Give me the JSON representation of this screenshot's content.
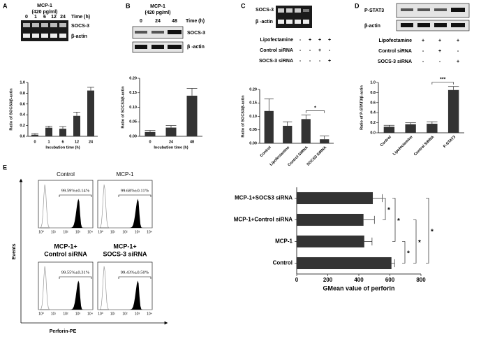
{
  "panel_labels": [
    "A",
    "B",
    "C",
    "D",
    "E"
  ],
  "blots": {
    "A": {
      "title": "MCP-1",
      "subtitle": "(420 pg/ml)",
      "lanes": [
        "0",
        "1",
        "6",
        "12",
        "24"
      ],
      "time_label": "Time (h)",
      "rows": [
        "SOCS-3",
        "β-actin"
      ]
    },
    "B": {
      "title": "MCP-1",
      "subtitle": "(420 pg/ml)",
      "lanes": [
        "0",
        "24",
        "48"
      ],
      "time_label": "Time (h)",
      "rows": [
        "SOCS-3",
        "β -actin"
      ]
    },
    "C": {
      "rows": [
        "SOCS-3",
        "β -actin"
      ],
      "treatments": [
        "Lipofectamine",
        "Control siRNA",
        "SOCS-3 siRNA"
      ],
      "signs": [
        [
          "-",
          "+",
          "+",
          "+"
        ],
        [
          "-",
          "-",
          "+",
          "-"
        ],
        [
          "-",
          "-",
          "-",
          "+"
        ]
      ]
    },
    "D": {
      "rows": [
        "P-STAT3",
        "β-actin"
      ],
      "treatments": [
        "Lipofectamine",
        "Control siRNA",
        "SOCS-3 siRNA"
      ],
      "signs": [
        [
          "-",
          "+",
          "+",
          "+"
        ],
        [
          "-",
          "-",
          "+",
          "-"
        ],
        [
          "-",
          "-",
          "-",
          "+"
        ]
      ]
    }
  },
  "flow": {
    "panels": [
      {
        "title": "Control",
        "stat": "99.59%±0.14%"
      },
      {
        "title": "MCP-1",
        "stat": "99.68%±0.11%"
      },
      {
        "title": "MCP-1+",
        "subtitle": "Control siRNA",
        "stat": "99.55%±0.31%"
      },
      {
        "title": "MCP-1+",
        "subtitle": "SOCS-3 siRNA",
        "stat": "99.43%±0.50%"
      }
    ],
    "xticks": [
      "10⁰",
      "10¹",
      "10²",
      "10³",
      "10⁴"
    ],
    "xlabel": "Perforin-PE",
    "ylabel": "Events"
  },
  "chart_data": [
    {
      "type": "bar",
      "categories": [
        "0",
        "1",
        "6",
        "12",
        "24"
      ],
      "values": [
        0.03,
        0.16,
        0.14,
        0.38,
        0.85
      ],
      "errors": [
        0.02,
        0.03,
        0.04,
        0.07,
        0.06
      ],
      "xlabel": "Incubation time (h)",
      "ylabel": "Ratio of SOCS3/β-actin",
      "color": "#333333",
      "ylim": [
        0,
        1.0
      ],
      "yticks": [
        {
          "value": 0,
          "label": "0.0"
        },
        {
          "value": 0.2,
          "label": "0.2"
        },
        {
          "value": 0.4,
          "label": "0.4"
        },
        {
          "value": 0.6,
          "label": "0.6"
        },
        {
          "value": 0.8,
          "label": "0.8"
        },
        {
          "value": 1.0,
          "label": "1.0"
        }
      ]
    },
    {
      "type": "bar",
      "categories": [
        "0",
        "24",
        "48"
      ],
      "values": [
        0.015,
        0.03,
        0.14
      ],
      "errors": [
        0.005,
        0.007,
        0.025
      ],
      "xlabel": "Incubation time (h)",
      "ylabel": "Ratio of SOCS3/β-actin",
      "color": "#333333",
      "ylim": [
        0,
        0.2
      ],
      "yticks": [
        {
          "value": 0,
          "label": "0.00"
        },
        {
          "value": 0.05,
          "label": "0.05"
        },
        {
          "value": 0.1,
          "label": "0.10"
        },
        {
          "value": 0.15,
          "label": "0.15"
        },
        {
          "value": 0.2,
          "label": "0.20"
        }
      ]
    },
    {
      "type": "bar",
      "categories": [
        "Control",
        "Lipofectamine",
        "Control SiRNA",
        "SOCS3 SiRNA"
      ],
      "values": [
        0.12,
        0.065,
        0.09,
        0.015
      ],
      "errors": [
        0.045,
        0.015,
        0.015,
        0.012
      ],
      "ylabel": "Ratio of SOCS3/β-actin",
      "color": "#333333",
      "annotation": "*",
      "ylim": [
        0,
        0.2
      ],
      "yticks": [
        {
          "value": 0,
          "label": "0.00"
        },
        {
          "value": 0.05,
          "label": "0.05"
        },
        {
          "value": 0.1,
          "label": "0.10"
        },
        {
          "value": 0.15,
          "label": "0.15"
        },
        {
          "value": 0.2,
          "label": "0.20"
        }
      ]
    },
    {
      "type": "bar",
      "categories": [
        "Control",
        "Lipofectamine",
        "Control SiRNA",
        "P-STAT3"
      ],
      "values": [
        0.12,
        0.17,
        0.18,
        0.85
      ],
      "errors": [
        0.03,
        0.03,
        0.04,
        0.07
      ],
      "ylabel": "Ratio of P-STAT3/β-actin",
      "color": "#333333",
      "annotation": "***",
      "ylim": [
        0,
        1.0
      ],
      "yticks": [
        {
          "value": 0,
          "label": "0.0"
        },
        {
          "value": 0.2,
          "label": "0.2"
        },
        {
          "value": 0.4,
          "label": "0.4"
        },
        {
          "value": 0.6,
          "label": "0.6"
        },
        {
          "value": 0.8,
          "label": "0.8"
        },
        {
          "value": 1.0,
          "label": "1.0"
        }
      ]
    },
    {
      "type": "hbar",
      "categories": [
        "MCP-1+SOCS3 siRNA",
        "MCP-1+Control siRNA",
        "MCP-1",
        "Control"
      ],
      "values": [
        490,
        430,
        435,
        610
      ],
      "errors": [
        60,
        70,
        50,
        20
      ],
      "xlabel": "GMean value of perforin",
      "color": "#333333",
      "annotations": [
        "*",
        "*",
        "*",
        "*",
        "*"
      ],
      "xlim": [
        0,
        800
      ],
      "xticks": [
        0,
        200,
        400,
        600,
        800
      ]
    }
  ]
}
